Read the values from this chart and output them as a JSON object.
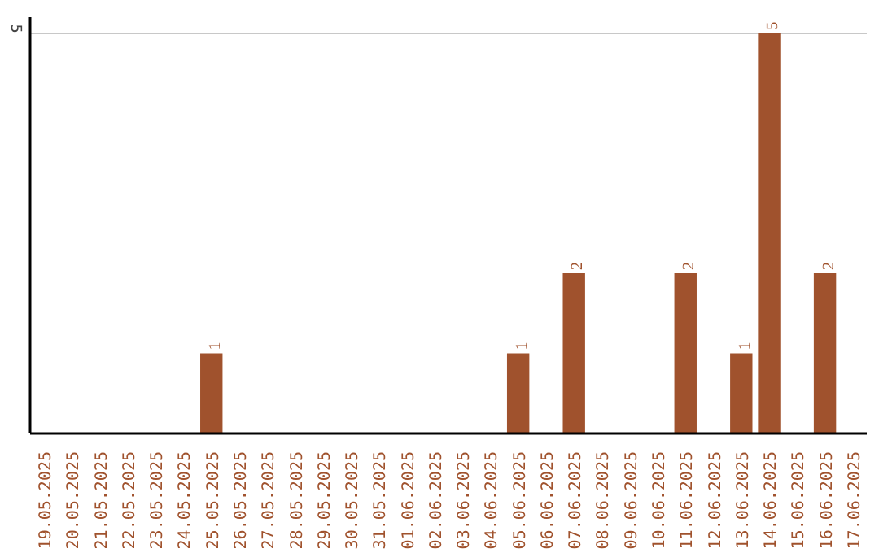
{
  "chart_data": {
    "type": "bar",
    "categories": [
      "19.05.2025",
      "20.05.2025",
      "21.05.2025",
      "22.05.2025",
      "23.05.2025",
      "24.05.2025",
      "25.05.2025",
      "26.05.2025",
      "27.05.2025",
      "28.05.2025",
      "29.05.2025",
      "30.05.2025",
      "31.05.2025",
      "01.06.2025",
      "02.06.2025",
      "03.06.2025",
      "04.06.2025",
      "05.06.2025",
      "06.06.2025",
      "07.06.2025",
      "08.06.2025",
      "09.06.2025",
      "10.06.2025",
      "11.06.2025",
      "12.06.2025",
      "13.06.2025",
      "14.06.2025",
      "15.06.2025",
      "16.06.2025",
      "17.06.2025"
    ],
    "values": [
      0,
      0,
      0,
      0,
      0,
      0,
      1,
      0,
      0,
      0,
      0,
      0,
      0,
      0,
      0,
      0,
      0,
      1,
      0,
      2,
      0,
      0,
      0,
      2,
      0,
      1,
      5,
      0,
      2,
      0
    ],
    "value_labels": [
      null,
      null,
      null,
      null,
      null,
      null,
      "1",
      null,
      null,
      null,
      null,
      null,
      null,
      null,
      null,
      null,
      null,
      "1",
      null,
      "2",
      null,
      null,
      null,
      "2",
      null,
      "1",
      "5",
      null,
      "2",
      null
    ],
    "color": "#a0522d",
    "ylim": [
      0,
      5.2
    ],
    "yticks": [
      5
    ],
    "grid": "y"
  }
}
